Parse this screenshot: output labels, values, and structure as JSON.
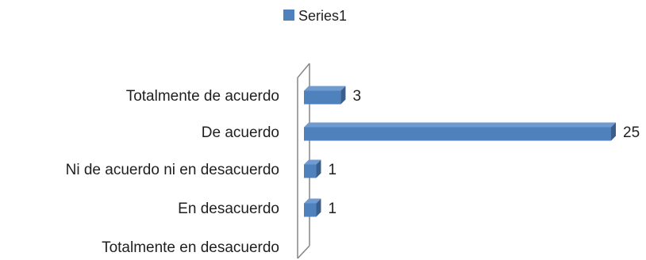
{
  "chart_data": {
    "type": "bar",
    "orientation": "horizontal",
    "style": "3d",
    "categories": [
      "Totalmente de acuerdo",
      "De acuerdo",
      "Ni de acuerdo ni en desacuerdo",
      "En desacuerdo",
      "Totalmente en desacuerdo"
    ],
    "series": [
      {
        "name": "Series1",
        "values": [
          3,
          25,
          1,
          1,
          0
        ],
        "color": "#4f81bd"
      }
    ],
    "data_labels": [
      "3",
      "25",
      "1",
      "1",
      ""
    ],
    "legend_position": "top",
    "xlim": [
      0,
      25
    ],
    "grid": false,
    "axis_visible": false
  },
  "colors": {
    "bar_front": "#4f81bd",
    "bar_top": "#6f9bd1",
    "bar_side": "#3a5f8c",
    "back_wall_stroke": "#868686"
  }
}
